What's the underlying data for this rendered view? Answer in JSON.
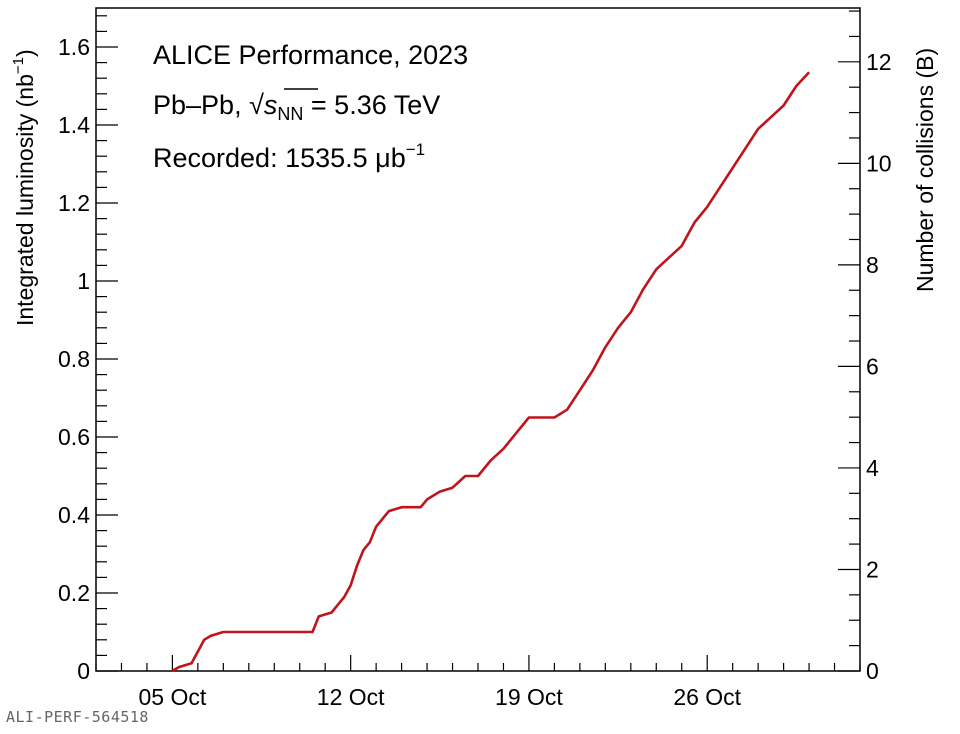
{
  "chart_data": {
    "type": "line",
    "title": "ALICE Performance, 2023",
    "subtitle": {
      "prefix": "Pb–Pb, ",
      "sqrt": "√",
      "s": "s",
      "s_sub": "NN",
      "suffix": " = 5.36 TeV"
    },
    "recorded": {
      "prefix": "Recorded: 1535.5 μb",
      "sup": "−1"
    },
    "ylabel": {
      "base": "Integrated luminosity (nb",
      "sup": "−1",
      "tail": ")"
    },
    "y2label": "Number of collisions (B)",
    "xlim": [
      "2023-10-02",
      "2023-11-01"
    ],
    "ylim": [
      0,
      1.7
    ],
    "y2lim": [
      0,
      13.06
    ],
    "x_ticks": [
      {
        "date": "2023-10-05",
        "label": "05 Oct"
      },
      {
        "date": "2023-10-12",
        "label": "12 Oct"
      },
      {
        "date": "2023-10-19",
        "label": "19 Oct"
      },
      {
        "date": "2023-10-26",
        "label": "26 Oct"
      }
    ],
    "y_ticks": [
      0,
      0.2,
      0.4,
      0.6,
      0.8,
      1,
      1.2,
      1.4,
      1.6
    ],
    "y_tick_labels": [
      "0",
      "0.2",
      "0.4",
      "0.6",
      "0.8",
      "1",
      "1.2",
      "1.4",
      "1.6"
    ],
    "y2_ticks": [
      0,
      2,
      4,
      6,
      8,
      10,
      12
    ],
    "y2_tick_labels": [
      "0",
      "2",
      "4",
      "6",
      "8",
      "10",
      "12"
    ],
    "color": "#c0141c",
    "grid": false,
    "series": [
      {
        "points": [
          [
            "2023-10-05 00:00",
            0.0
          ],
          [
            "2023-10-05 06:00",
            0.01
          ],
          [
            "2023-10-05 18:00",
            0.02
          ],
          [
            "2023-10-06 00:00",
            0.05
          ],
          [
            "2023-10-06 06:00",
            0.08
          ],
          [
            "2023-10-06 12:00",
            0.09
          ],
          [
            "2023-10-07 00:00",
            0.1
          ],
          [
            "2023-10-09 00:00",
            0.1
          ],
          [
            "2023-10-10 00:00",
            0.1
          ],
          [
            "2023-10-10 12:00",
            0.1
          ],
          [
            "2023-10-10 18:00",
            0.14
          ],
          [
            "2023-10-11 06:00",
            0.15
          ],
          [
            "2023-10-11 12:00",
            0.17
          ],
          [
            "2023-10-11 18:00",
            0.19
          ],
          [
            "2023-10-12 00:00",
            0.22
          ],
          [
            "2023-10-12 06:00",
            0.27
          ],
          [
            "2023-10-12 12:00",
            0.31
          ],
          [
            "2023-10-12 18:00",
            0.33
          ],
          [
            "2023-10-13 00:00",
            0.37
          ],
          [
            "2023-10-13 12:00",
            0.41
          ],
          [
            "2023-10-14 00:00",
            0.42
          ],
          [
            "2023-10-14 18:00",
            0.42
          ],
          [
            "2023-10-15 00:00",
            0.44
          ],
          [
            "2023-10-15 12:00",
            0.46
          ],
          [
            "2023-10-16 00:00",
            0.47
          ],
          [
            "2023-10-16 12:00",
            0.5
          ],
          [
            "2023-10-17 00:00",
            0.5
          ],
          [
            "2023-10-17 12:00",
            0.54
          ],
          [
            "2023-10-18 00:00",
            0.57
          ],
          [
            "2023-10-18 12:00",
            0.61
          ],
          [
            "2023-10-19 00:00",
            0.65
          ],
          [
            "2023-10-20 00:00",
            0.65
          ],
          [
            "2023-10-20 12:00",
            0.67
          ],
          [
            "2023-10-21 00:00",
            0.72
          ],
          [
            "2023-10-21 12:00",
            0.77
          ],
          [
            "2023-10-22 00:00",
            0.83
          ],
          [
            "2023-10-22 12:00",
            0.88
          ],
          [
            "2023-10-23 00:00",
            0.92
          ],
          [
            "2023-10-23 12:00",
            0.98
          ],
          [
            "2023-10-24 00:00",
            1.03
          ],
          [
            "2023-10-24 12:00",
            1.06
          ],
          [
            "2023-10-25 00:00",
            1.09
          ],
          [
            "2023-10-25 12:00",
            1.15
          ],
          [
            "2023-10-26 00:00",
            1.19
          ],
          [
            "2023-10-26 12:00",
            1.24
          ],
          [
            "2023-10-27 00:00",
            1.29
          ],
          [
            "2023-10-27 12:00",
            1.34
          ],
          [
            "2023-10-28 00:00",
            1.39
          ],
          [
            "2023-10-28 12:00",
            1.42
          ],
          [
            "2023-10-29 00:00",
            1.45
          ],
          [
            "2023-10-29 12:00",
            1.5
          ],
          [
            "2023-10-30 00:00",
            1.5355
          ]
        ]
      }
    ]
  },
  "footer": "ALI-PERF-564518"
}
